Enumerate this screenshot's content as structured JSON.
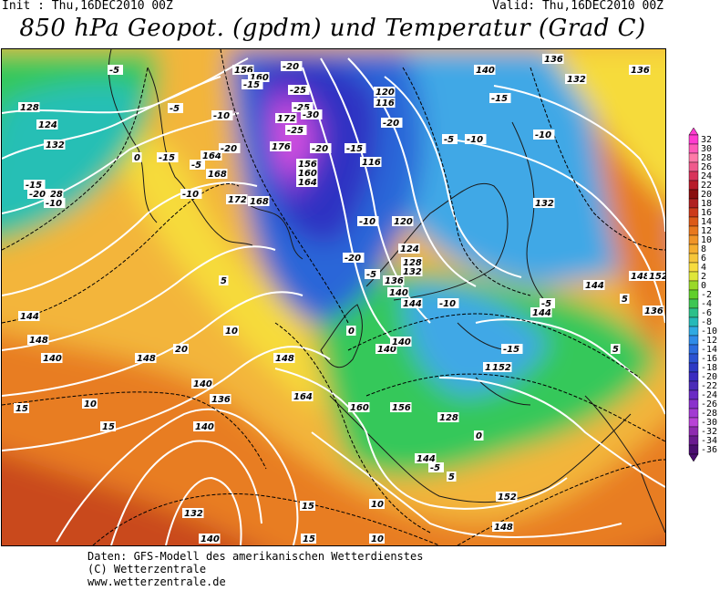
{
  "header": {
    "init": "Init : Thu,16DEC2010 00Z",
    "valid": "Valid: Thu,16DEC2010 00Z",
    "title": "850 hPa Geopot. (gpdm) und Temperatur (Grad C)"
  },
  "map": {
    "height_labels": [
      "156",
      "160",
      "136",
      "132",
      "128",
      "124",
      "120",
      "116",
      "132",
      "128",
      "140",
      "136",
      "132",
      "172",
      "176",
      "164",
      "168",
      "172",
      "168",
      "164",
      "160",
      "156",
      "116",
      "120",
      "124",
      "128",
      "132",
      "136",
      "140",
      "144",
      "148",
      "152",
      "136",
      "144",
      "148",
      "140",
      "140",
      "144",
      "148",
      "164",
      "160",
      "156",
      "152",
      "140",
      "136",
      "140",
      "144",
      "148",
      "132",
      "140",
      "148",
      "152",
      "128",
      "140",
      "140",
      "144"
    ],
    "temperature_labels": [
      "-5",
      "-10",
      "-15",
      "-20",
      "-25",
      "-20",
      "-15",
      "-10",
      "-5",
      "0",
      "-5",
      "-10",
      "-15",
      "-20",
      "-25",
      "-30",
      "-25",
      "-20",
      "-15",
      "-10",
      "-5",
      "0",
      "5",
      "10",
      "15",
      "-5",
      "-10",
      "-15",
      "-10",
      "5",
      "10",
      "15",
      "20",
      "-5",
      "-10",
      "-15",
      "0",
      "5",
      "10",
      "15",
      "-20",
      "-20",
      "5",
      "10",
      "15",
      "-5"
    ],
    "colors": {
      "deep_warm": "#c94a1a",
      "warm": "#e87d24",
      "mild": "#f3b53b",
      "yellow": "#f6db3a",
      "zero": "#63d31f",
      "cool_green": "#34c85a",
      "teal": "#27bfb5",
      "cyan": "#3fa8e6",
      "blue": "#2a66d8",
      "dark_blue": "#2d33c2",
      "violet": "#7a3ad0",
      "magenta": "#d44fe0",
      "isohypse": "#ffffff",
      "isotherm": "#000000",
      "coastline": "#1a1a1a"
    }
  },
  "legend": {
    "labels": [
      "32",
      "30",
      "28",
      "26",
      "24",
      "22",
      "20",
      "18",
      "16",
      "14",
      "12",
      "10",
      "8",
      "6",
      "4",
      "2",
      "0",
      "-2",
      "-4",
      "-6",
      "-8",
      "-10",
      "-12",
      "-14",
      "-16",
      "-18",
      "-20",
      "-22",
      "-24",
      "-26",
      "-28",
      "-30",
      "-32",
      "-34",
      "-36"
    ],
    "colors": [
      "#ff3bd0",
      "#ff5ab8",
      "#ff7aa8",
      "#f05a8c",
      "#d8335a",
      "#b81c2a",
      "#8a0e0e",
      "#b02020",
      "#cc3a1a",
      "#dc5a18",
      "#e8781e",
      "#f09428",
      "#f5ae30",
      "#f6c63a",
      "#f7dc3e",
      "#dfe63a",
      "#9ad828",
      "#5fcf2a",
      "#3ec653",
      "#2cc08a",
      "#25b9b8",
      "#2fa9e2",
      "#2f8be8",
      "#2c6cde",
      "#2b52d2",
      "#2c39c4",
      "#3a2cc0",
      "#4a2cb8",
      "#6a2cc4",
      "#8a32cc",
      "#a23ad2",
      "#b842d6",
      "#8e2ab0",
      "#6a1a90",
      "#4a0e70"
    ]
  },
  "footer": {
    "line1": "Daten: GFS-Modell des amerikanischen Wetterdienstes",
    "line2": "(C) Wetterzentrale",
    "line3": "www.wetterzentrale.de"
  }
}
